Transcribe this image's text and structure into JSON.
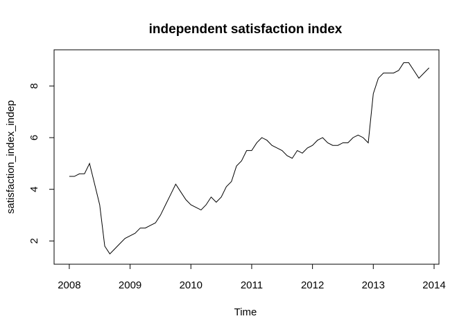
{
  "chart_data": {
    "type": "line",
    "title": "independent satisfaction index",
    "xlabel": "Time",
    "ylabel": "satisfaction_index_indep",
    "xlim": [
      2007.75,
      2014.08
    ],
    "ylim": [
      1.1,
      9.4
    ],
    "grid": false,
    "x_ticks": [
      2008,
      2009,
      2010,
      2011,
      2012,
      2013,
      2014
    ],
    "y_ticks": [
      2,
      4,
      6,
      8
    ],
    "series": [
      {
        "x": [
          2008.0,
          2008.083,
          2008.167,
          2008.25,
          2008.333,
          2008.417,
          2008.5,
          2008.583,
          2008.667,
          2008.75,
          2008.833,
          2008.917,
          2009.0,
          2009.083,
          2009.167,
          2009.25,
          2009.333,
          2009.417,
          2009.5,
          2009.583,
          2009.667,
          2009.75,
          2009.833,
          2009.917,
          2010.0,
          2010.083,
          2010.167,
          2010.25,
          2010.333,
          2010.417,
          2010.5,
          2010.583,
          2010.667,
          2010.75,
          2010.833,
          2010.917,
          2011.0,
          2011.083,
          2011.167,
          2011.25,
          2011.333,
          2011.417,
          2011.5,
          2011.583,
          2011.667,
          2011.75,
          2011.833,
          2011.917,
          2012.0,
          2012.083,
          2012.167,
          2012.25,
          2012.333,
          2012.417,
          2012.5,
          2012.583,
          2012.667,
          2012.75,
          2012.833,
          2012.917,
          2013.0,
          2013.083,
          2013.167,
          2013.25,
          2013.333,
          2013.417,
          2013.5,
          2013.583,
          2013.667,
          2013.75,
          2013.833,
          2013.917
        ],
        "y": [
          4.5,
          4.5,
          4.6,
          4.6,
          5.0,
          4.2,
          3.4,
          1.8,
          1.5,
          1.7,
          1.9,
          2.1,
          2.2,
          2.3,
          2.5,
          2.5,
          2.6,
          2.7,
          3.0,
          3.4,
          3.8,
          4.2,
          3.9,
          3.6,
          3.4,
          3.3,
          3.2,
          3.4,
          3.7,
          3.5,
          3.7,
          4.1,
          4.3,
          4.9,
          5.1,
          5.5,
          5.5,
          5.8,
          6.0,
          5.9,
          5.7,
          5.6,
          5.5,
          5.3,
          5.2,
          5.5,
          5.4,
          5.6,
          5.7,
          5.9,
          6.0,
          5.8,
          5.7,
          5.7,
          5.8,
          5.8,
          6.0,
          6.1,
          6.0,
          5.8,
          7.7,
          8.3,
          8.5,
          8.5,
          8.5,
          8.6,
          8.9,
          8.9,
          8.6,
          8.3,
          8.5,
          8.7
        ]
      }
    ]
  }
}
